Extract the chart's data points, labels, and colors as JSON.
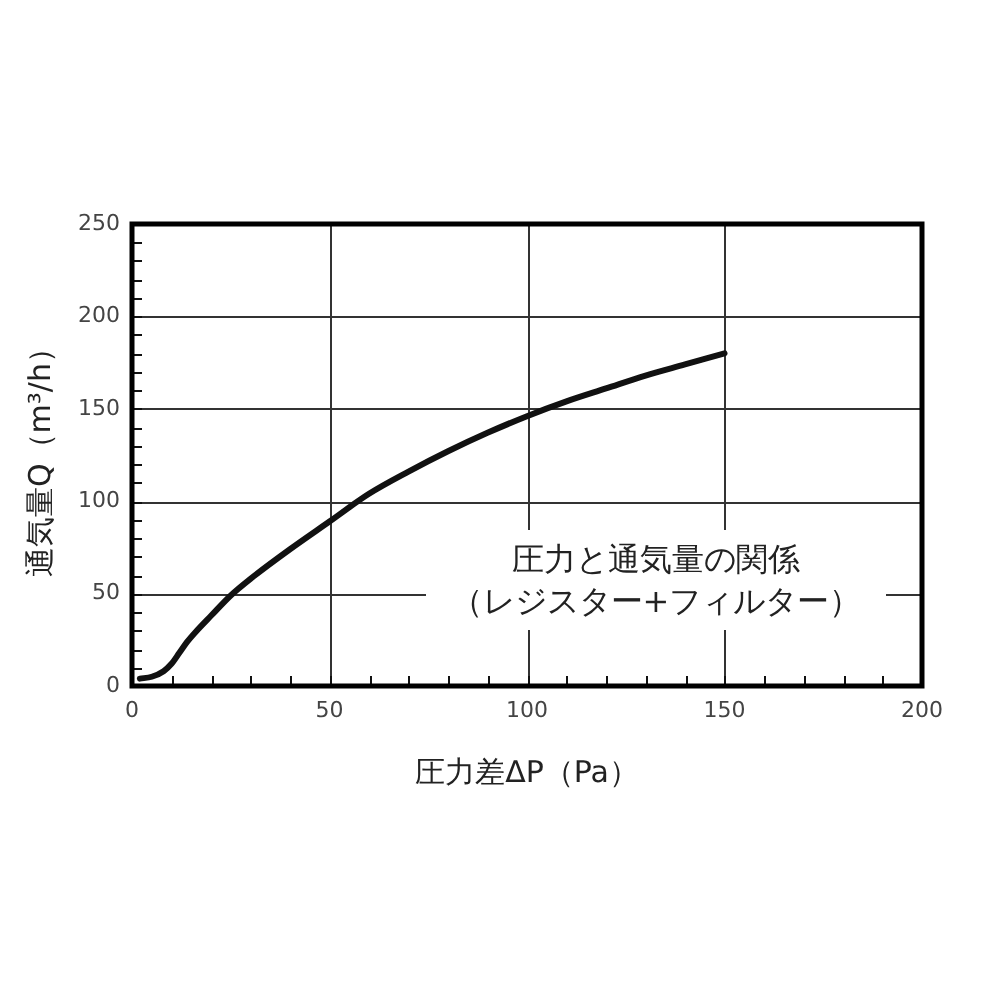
{
  "chart_data": {
    "type": "line",
    "xlabel": "圧力差ΔP（Pa）",
    "ylabel": "通気量Q（m³/h）",
    "annotations": [
      "圧力と通気量の関係",
      "（レジスター+フィルター）"
    ],
    "x": [
      2,
      5,
      8,
      10,
      12,
      14,
      16,
      20,
      25,
      30,
      40,
      50,
      60,
      70,
      80,
      90,
      100,
      110,
      120,
      130,
      140,
      150
    ],
    "series": [
      {
        "color": "#111111",
        "values": [
          4,
          5,
          8,
          12,
          18,
          24,
          29,
          38,
          49,
          58,
          74,
          89,
          104,
          116,
          127,
          137,
          146,
          154,
          161,
          168,
          174,
          180
        ]
      }
    ],
    "xlim": [
      0,
      200
    ],
    "ylim": [
      0,
      250
    ],
    "xticks": [
      0,
      {
        "value": 10,
        "label": null
      },
      {
        "value": 20,
        "label": null
      },
      {
        "value": 30,
        "label": null
      },
      {
        "value": 40,
        "label": null
      },
      50,
      {
        "value": 60,
        "label": null
      },
      {
        "value": 70,
        "label": null
      },
      {
        "value": 80,
        "label": null
      },
      {
        "value": 90,
        "label": null
      },
      100,
      {
        "value": 110,
        "label": null
      },
      {
        "value": 120,
        "label": null
      },
      {
        "value": 130,
        "label": null
      },
      {
        "value": 140,
        "label": null
      },
      150,
      {
        "value": 160,
        "label": null
      },
      {
        "value": 170,
        "label": null
      },
      {
        "value": 180,
        "label": null
      },
      {
        "value": 190,
        "label": null
      },
      200
    ],
    "yticks": [
      0,
      {
        "value": 10,
        "label": null
      },
      {
        "value": 20,
        "label": null
      },
      {
        "value": 30,
        "label": null
      },
      {
        "value": 40,
        "label": null
      },
      50,
      {
        "value": 60,
        "label": null
      },
      {
        "value": 70,
        "label": null
      },
      {
        "value": 80,
        "label": null
      },
      {
        "value": 90,
        "label": null
      },
      100,
      {
        "value": 110,
        "label": null
      },
      {
        "value": 120,
        "label": null
      },
      {
        "value": 130,
        "label": null
      },
      {
        "value": 140,
        "label": null
      },
      150,
      {
        "value": 160,
        "label": null
      },
      {
        "value": 170,
        "label": null
      },
      {
        "value": 180,
        "label": null
      },
      {
        "value": 190,
        "label": null
      },
      200,
      {
        "value": 210,
        "label": null
      },
      {
        "value": 220,
        "label": null
      },
      {
        "value": 230,
        "label": null
      },
      {
        "value": 240,
        "label": null
      },
      250
    ],
    "grid": true,
    "legend": false,
    "marker": "none",
    "line_style": "solid"
  }
}
